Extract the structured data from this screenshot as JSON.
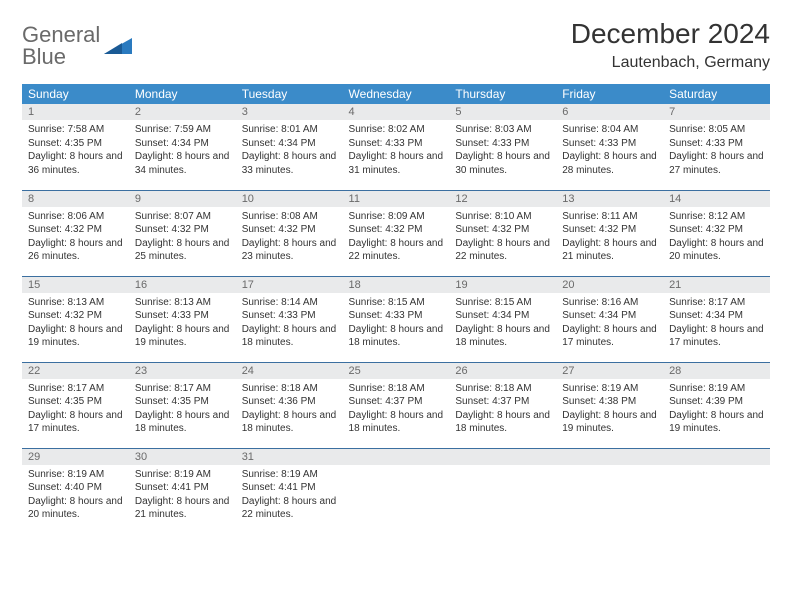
{
  "logo": {
    "line1": "General",
    "line2": "Blue"
  },
  "header": {
    "title": "December 2024",
    "location": "Lautenbach, Germany"
  },
  "columns": [
    "Sunday",
    "Monday",
    "Tuesday",
    "Wednesday",
    "Thursday",
    "Friday",
    "Saturday"
  ],
  "colors": {
    "header_bg": "#3b8bc9",
    "header_text": "#ffffff",
    "daynum_bg": "#e9eaeb",
    "daynum_text": "#6a6a6a",
    "row_border": "#3b6fa0",
    "logo_gray": "#6a6a6a",
    "logo_blue": "#2a7abf"
  },
  "days": [
    {
      "n": "1",
      "sr": "7:58 AM",
      "ss": "4:35 PM",
      "dl": "8 hours and 36 minutes."
    },
    {
      "n": "2",
      "sr": "7:59 AM",
      "ss": "4:34 PM",
      "dl": "8 hours and 34 minutes."
    },
    {
      "n": "3",
      "sr": "8:01 AM",
      "ss": "4:34 PM",
      "dl": "8 hours and 33 minutes."
    },
    {
      "n": "4",
      "sr": "8:02 AM",
      "ss": "4:33 PM",
      "dl": "8 hours and 31 minutes."
    },
    {
      "n": "5",
      "sr": "8:03 AM",
      "ss": "4:33 PM",
      "dl": "8 hours and 30 minutes."
    },
    {
      "n": "6",
      "sr": "8:04 AM",
      "ss": "4:33 PM",
      "dl": "8 hours and 28 minutes."
    },
    {
      "n": "7",
      "sr": "8:05 AM",
      "ss": "4:33 PM",
      "dl": "8 hours and 27 minutes."
    },
    {
      "n": "8",
      "sr": "8:06 AM",
      "ss": "4:32 PM",
      "dl": "8 hours and 26 minutes."
    },
    {
      "n": "9",
      "sr": "8:07 AM",
      "ss": "4:32 PM",
      "dl": "8 hours and 25 minutes."
    },
    {
      "n": "10",
      "sr": "8:08 AM",
      "ss": "4:32 PM",
      "dl": "8 hours and 23 minutes."
    },
    {
      "n": "11",
      "sr": "8:09 AM",
      "ss": "4:32 PM",
      "dl": "8 hours and 22 minutes."
    },
    {
      "n": "12",
      "sr": "8:10 AM",
      "ss": "4:32 PM",
      "dl": "8 hours and 22 minutes."
    },
    {
      "n": "13",
      "sr": "8:11 AM",
      "ss": "4:32 PM",
      "dl": "8 hours and 21 minutes."
    },
    {
      "n": "14",
      "sr": "8:12 AM",
      "ss": "4:32 PM",
      "dl": "8 hours and 20 minutes."
    },
    {
      "n": "15",
      "sr": "8:13 AM",
      "ss": "4:32 PM",
      "dl": "8 hours and 19 minutes."
    },
    {
      "n": "16",
      "sr": "8:13 AM",
      "ss": "4:33 PM",
      "dl": "8 hours and 19 minutes."
    },
    {
      "n": "17",
      "sr": "8:14 AM",
      "ss": "4:33 PM",
      "dl": "8 hours and 18 minutes."
    },
    {
      "n": "18",
      "sr": "8:15 AM",
      "ss": "4:33 PM",
      "dl": "8 hours and 18 minutes."
    },
    {
      "n": "19",
      "sr": "8:15 AM",
      "ss": "4:34 PM",
      "dl": "8 hours and 18 minutes."
    },
    {
      "n": "20",
      "sr": "8:16 AM",
      "ss": "4:34 PM",
      "dl": "8 hours and 17 minutes."
    },
    {
      "n": "21",
      "sr": "8:17 AM",
      "ss": "4:34 PM",
      "dl": "8 hours and 17 minutes."
    },
    {
      "n": "22",
      "sr": "8:17 AM",
      "ss": "4:35 PM",
      "dl": "8 hours and 17 minutes."
    },
    {
      "n": "23",
      "sr": "8:17 AM",
      "ss": "4:35 PM",
      "dl": "8 hours and 18 minutes."
    },
    {
      "n": "24",
      "sr": "8:18 AM",
      "ss": "4:36 PM",
      "dl": "8 hours and 18 minutes."
    },
    {
      "n": "25",
      "sr": "8:18 AM",
      "ss": "4:37 PM",
      "dl": "8 hours and 18 minutes."
    },
    {
      "n": "26",
      "sr": "8:18 AM",
      "ss": "4:37 PM",
      "dl": "8 hours and 18 minutes."
    },
    {
      "n": "27",
      "sr": "8:19 AM",
      "ss": "4:38 PM",
      "dl": "8 hours and 19 minutes."
    },
    {
      "n": "28",
      "sr": "8:19 AM",
      "ss": "4:39 PM",
      "dl": "8 hours and 19 minutes."
    },
    {
      "n": "29",
      "sr": "8:19 AM",
      "ss": "4:40 PM",
      "dl": "8 hours and 20 minutes."
    },
    {
      "n": "30",
      "sr": "8:19 AM",
      "ss": "4:41 PM",
      "dl": "8 hours and 21 minutes."
    },
    {
      "n": "31",
      "sr": "8:19 AM",
      "ss": "4:41 PM",
      "dl": "8 hours and 22 minutes."
    }
  ],
  "labels": {
    "sunrise": "Sunrise: ",
    "sunset": "Sunset: ",
    "daylight": "Daylight: "
  },
  "layout": {
    "start_weekday": 0,
    "weeks": 5
  }
}
